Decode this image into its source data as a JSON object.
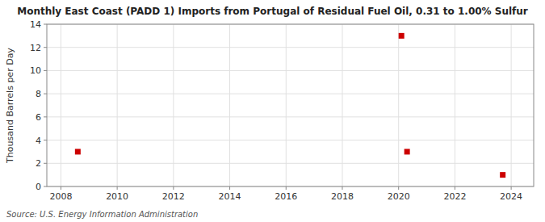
{
  "chart_data": {
    "type": "scatter",
    "title": "Monthly East Coast (PADD 1) Imports from Portugal of Residual Fuel Oil, 0.31 to 1.00% Sulfur",
    "y_label": "Thousand Barrels per Day",
    "source": "Source: U.S. Energy Information Administration",
    "x": [
      2008.6,
      2020.1,
      2020.3,
      2023.7
    ],
    "values": [
      3.0,
      13.0,
      3.0,
      1.0
    ],
    "color": "#cc0000",
    "marker": "square",
    "xlim": [
      2007.5,
      2024.8
    ],
    "ylim": [
      0,
      14
    ],
    "xticks": [
      2008,
      2010,
      2012,
      2014,
      2016,
      2018,
      2020,
      2022,
      2024
    ],
    "yticks": [
      0,
      2,
      4,
      6,
      8,
      10,
      12,
      14
    ],
    "grid": true
  }
}
